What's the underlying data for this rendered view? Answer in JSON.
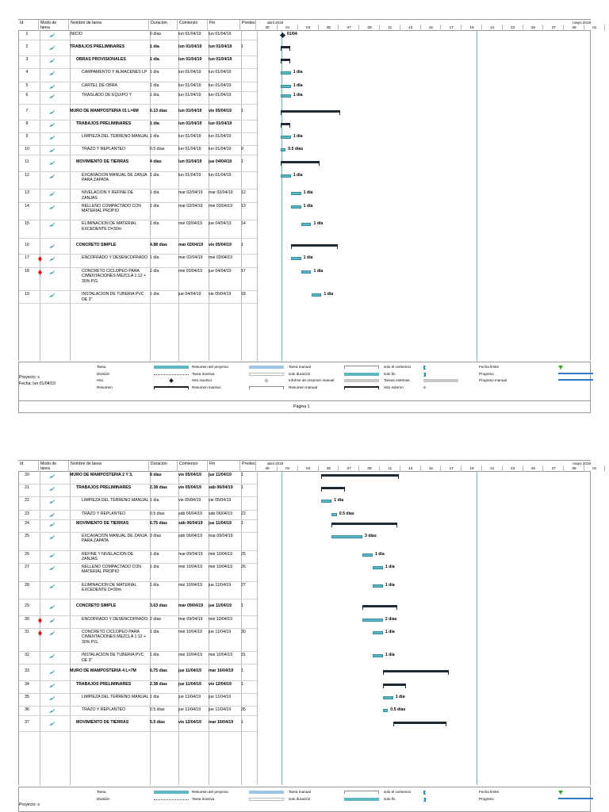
{
  "headers": {
    "id": "Id",
    "mode": "Modo de tarea",
    "name": "Nombre de tarea",
    "dur": "Duración",
    "start": "Comienzo",
    "end": "Fin",
    "pred": "Predece"
  },
  "timescale": {
    "top_left": "abril 2019",
    "top_right": "mayo 2019",
    "days": [
      "30",
      "01",
      "03",
      "05",
      "07",
      "09",
      "11",
      "13",
      "15",
      "17",
      "19",
      "21",
      "23",
      "25",
      "27",
      "29",
      "01"
    ]
  },
  "page1": {
    "rows": [
      {
        "id": "1",
        "name": "INICIO",
        "dur": "0 días",
        "start": "lun 01/04/19",
        "end": "lun 01/04/19",
        "pred": "",
        "bold": false,
        "lvl": 0,
        "label": "01/04"
      },
      {
        "id": "2",
        "name": "TRABAJOS PRELIMINARES",
        "dur": "1 día",
        "start": "lun 01/04/19",
        "end": "lun 01/04/19",
        "pred": "1",
        "bold": true,
        "lvl": 0,
        "label": ""
      },
      {
        "id": "3",
        "name": "OBRAS PROVISIONALES",
        "dur": "1 día",
        "start": "lun 01/04/19",
        "end": "lun 01/04/19",
        "pred": "",
        "bold": true,
        "lvl": 1,
        "label": ""
      },
      {
        "id": "4",
        "name": "CAMPAMENTO Y ALMACENES LP",
        "dur": "1 día",
        "start": "lun 01/04/19",
        "end": "lun 01/04/19",
        "pred": "",
        "bold": false,
        "lvl": 2,
        "label": "1 día"
      },
      {
        "id": "5",
        "name": "CARTEL DE OBRA",
        "dur": "1 día",
        "start": "lun 01/04/19",
        "end": "lun 01/04/19",
        "pred": "",
        "bold": false,
        "lvl": 2,
        "label": "1 día"
      },
      {
        "id": "6",
        "name": "TRASLADO DE EQUIPO Y",
        "dur": "1 día",
        "start": "lun 01/04/19",
        "end": "lun 01/04/19",
        "pred": "",
        "bold": false,
        "lvl": 2,
        "label": "1 día"
      },
      {
        "id": "7",
        "name": "MURO DE MAMPOSTERIA 01 L=6M",
        "dur": "6.13 días",
        "start": "lun 01/04/19",
        "end": "vie 05/04/19",
        "pred": "1",
        "bold": true,
        "lvl": 0,
        "label": ""
      },
      {
        "id": "8",
        "name": "TRABAJOS PRELIMINARES",
        "dur": "1 día",
        "start": "lun 01/04/19",
        "end": "lun 01/04/19",
        "pred": "",
        "bold": true,
        "lvl": 1,
        "label": ""
      },
      {
        "id": "9",
        "name": "LIMPIEZA DEL TERRENO MANUAL",
        "dur": "1 día",
        "start": "lun 01/04/19",
        "end": "lun 01/04/19",
        "pred": "",
        "bold": false,
        "lvl": 2,
        "label": "1 día"
      },
      {
        "id": "10",
        "name": "TRAZO Y REPLANTEO",
        "dur": "0.5 días",
        "start": "lun 01/04/19",
        "end": "lun 01/04/19",
        "pred": "9",
        "bold": false,
        "lvl": 2,
        "label": "0.5 días"
      },
      {
        "id": "11",
        "name": "MOVIMIENTO DE TIERRAS",
        "dur": "4 días",
        "start": "lun 01/04/19",
        "end": "jue 04/04/19",
        "pred": "1",
        "bold": true,
        "lvl": 1,
        "label": ""
      },
      {
        "id": "12",
        "name": "EXCAVACION MANUAL DE ZANJA PARA ZAPATA",
        "dur": "1 día",
        "start": "lun 01/04/19",
        "end": "lun 01/04/19",
        "pred": "",
        "bold": false,
        "lvl": 2,
        "label": "1 día"
      },
      {
        "id": "13",
        "name": "NIVELACION Y REFINE DE ZANJAS",
        "dur": "1 día",
        "start": "mar 02/04/19",
        "end": "mar 02/04/19",
        "pred": "12",
        "bold": false,
        "lvl": 2,
        "label": "1 día"
      },
      {
        "id": "14",
        "name": "RELLENO COMPACTADO CON MATERIAL PROPIO",
        "dur": "1 día",
        "start": "mar 02/04/19",
        "end": "mié 03/04/19",
        "pred": "13",
        "bold": false,
        "lvl": 2,
        "label": "1 día"
      },
      {
        "id": "15",
        "name": "ELIMINACION DE MATERIAL EXCEDENTE D=30m",
        "dur": "1 día",
        "start": "mié 03/04/19",
        "end": "jue 04/04/19",
        "pred": "14",
        "bold": false,
        "lvl": 2,
        "label": "1 día"
      },
      {
        "id": "16",
        "name": "CONCRETO SIMPLE",
        "dur": "4.88 días",
        "start": "mar 02/04/19",
        "end": "vie 05/04/19",
        "pred": "1",
        "bold": true,
        "lvl": 1,
        "label": ""
      },
      {
        "id": "17",
        "name": "ENCOFRADO Y DESENCOFRADO",
        "dur": "1 día",
        "start": "mar 02/04/19",
        "end": "mié 03/04/19",
        "pred": "",
        "bold": false,
        "lvl": 2,
        "label": "1 día"
      },
      {
        "id": "18",
        "name": "CONCRETO CICLOPEO PARA CIMENTACIONES MEZCLA 1:12 + 30% P.G.",
        "dur": "1 día",
        "start": "mié 03/04/19",
        "end": "jue 04/04/19",
        "pred": "17",
        "bold": false,
        "lvl": 2,
        "label": "1 día"
      },
      {
        "id": "19",
        "name": "INSTALACION DE TUBERIA PVC DE 3''",
        "dur": "1 día",
        "start": "jue 04/04/19",
        "end": "vie 05/04/19",
        "pred": "18",
        "bold": false,
        "lvl": 2,
        "label": "1 día"
      }
    ],
    "footer": {
      "proyecto": "Proyecto: s",
      "fecha": "Fecha: lun 01/04/19",
      "pagina": "Página 1"
    }
  },
  "page2": {
    "rows": [
      {
        "id": "20",
        "name": "MURO DE MAMPOSTERIA 2 Y 3,",
        "dur": "8 días",
        "start": "vie 05/04/19",
        "end": "jue 11/04/19",
        "pred": "1",
        "bold": true,
        "lvl": 0,
        "label": ""
      },
      {
        "id": "21",
        "name": "TRABAJOS PRELIMINARES",
        "dur": "2.38 días",
        "start": "vie 05/04/19",
        "end": "sáb 06/04/19",
        "pred": "1",
        "bold": true,
        "lvl": 1,
        "label": ""
      },
      {
        "id": "22",
        "name": "LIMPIEZA DEL TERRENO MANUAL",
        "dur": "1 día",
        "start": "vie 05/04/19",
        "end": "vie 05/04/19",
        "pred": "",
        "bold": false,
        "lvl": 2,
        "label": "1 día"
      },
      {
        "id": "23",
        "name": "TRAZO Y REPLANTEO",
        "dur": "0.5 días",
        "start": "sáb 06/04/19",
        "end": "sáb 06/04/19",
        "pred": "22",
        "bold": false,
        "lvl": 2,
        "label": "0.5 días"
      },
      {
        "id": "24",
        "name": "MOVIMIENTO DE TIERRAS",
        "dur": "6.75 días",
        "start": "sáb 06/04/19",
        "end": "jue 11/04/19",
        "pred": "1",
        "bold": true,
        "lvl": 1,
        "label": ""
      },
      {
        "id": "25",
        "name": "EXCAVACION MANUAL DE ZANJA PARA ZAPATA",
        "dur": "3 días",
        "start": "sáb 06/04/19",
        "end": "mar 09/04/19",
        "pred": "",
        "bold": false,
        "lvl": 2,
        "label": "3 días"
      },
      {
        "id": "26",
        "name": "REFINE Y NIVELACION DE ZANJAS",
        "dur": "1 día",
        "start": "mar 09/04/19",
        "end": "mié 10/04/19",
        "pred": "25",
        "bold": false,
        "lvl": 2,
        "label": "1 día"
      },
      {
        "id": "27",
        "name": "RELLENO COMPACTADO CON MATERIAL PROPIO",
        "dur": "1 día",
        "start": "mié 10/04/19",
        "end": "mié 10/04/19",
        "pred": "26",
        "bold": false,
        "lvl": 2,
        "label": "1 día"
      },
      {
        "id": "28",
        "name": "ELIMINACION DE MATERIAL EXCEDENTE D=30m",
        "dur": "1 día",
        "start": "mié 10/04/19",
        "end": "jue 11/04/19",
        "pred": "27",
        "bold": false,
        "lvl": 2,
        "label": "1 día"
      },
      {
        "id": "29",
        "name": "CONCRETO SIMPLE",
        "dur": "3.63 días",
        "start": "mar 09/04/19",
        "end": "jue 11/04/19",
        "pred": "1",
        "bold": true,
        "lvl": 1,
        "label": ""
      },
      {
        "id": "30",
        "name": "ENCOFRADO Y DESENCOFRADO",
        "dur": "2 días",
        "start": "mar 09/04/19",
        "end": "mié 10/04/19",
        "pred": "",
        "bold": false,
        "lvl": 2,
        "label": "2 días"
      },
      {
        "id": "31",
        "name": "CONCRETO CICLOPEO PARA CIMENTACIONES MEZCLA 1:12 + 30% P.G.",
        "dur": "1 día",
        "start": "mié 10/04/19",
        "end": "jue 11/04/19",
        "pred": "30",
        "bold": false,
        "lvl": 2,
        "label": "1 día"
      },
      {
        "id": "32",
        "name": "INSTALACION DE TUBERIA PVC DE 3''",
        "dur": "1 día",
        "start": "mié 10/04/19",
        "end": "mié 10/04/19",
        "pred": "31",
        "bold": false,
        "lvl": 2,
        "label": "1 día"
      },
      {
        "id": "33",
        "name": "MURO DE MAMPOSTERIA 4 L=7M",
        "dur": "6.75 días",
        "start": "jue 11/04/19",
        "end": "mar 16/04/19",
        "pred": "1",
        "bold": true,
        "lvl": 0,
        "label": ""
      },
      {
        "id": "34",
        "name": "TRABAJOS PRELIMINARES",
        "dur": "2.38 días",
        "start": "jue 11/04/19",
        "end": "vie 12/04/19",
        "pred": "1",
        "bold": true,
        "lvl": 1,
        "label": ""
      },
      {
        "id": "35",
        "name": "LIMPIEZA DEL TERRENO MANUAL",
        "dur": "1 día",
        "start": "jue 11/04/19",
        "end": "jue 11/04/19",
        "pred": "",
        "bold": false,
        "lvl": 2,
        "label": "1 día"
      },
      {
        "id": "36",
        "name": "TRAZO Y REPLANTEO",
        "dur": "0.5 días",
        "start": "jue 11/04/19",
        "end": "jue 11/04/19",
        "pred": "35",
        "bold": false,
        "lvl": 2,
        "label": "0.5 días"
      },
      {
        "id": "37",
        "name": "MOVIMIENTO DE TIERRAS",
        "dur": "5.5 días",
        "start": "vie 12/04/19",
        "end": "mar 16/04/19",
        "pred": "1",
        "bold": true,
        "lvl": 1,
        "label": ""
      }
    ],
    "footer": {
      "proyecto": "Proyecto: s"
    }
  },
  "legend": {
    "col1": [
      "Tarea",
      "División",
      "Hito",
      "Resumen"
    ],
    "col2": [
      "Resumen del proyecto",
      "Tarea inactiva",
      "Hito inactivo",
      "Resumen inactivo"
    ],
    "col3": [
      "Tarea manual",
      "solo duración",
      "Informe de resumen manual",
      "Resumen manual"
    ],
    "col4": [
      "solo el comienzo",
      "solo fin",
      "Tareas externas",
      "Hito externo"
    ],
    "col5": [
      "Fecha límite",
      "Progreso",
      "Progreso manual"
    ]
  },
  "colors": {
    "task": "#5fb6c3",
    "summary": "#1e2a33",
    "project": "#9cc3e8",
    "today": "#6cb6c8"
  }
}
